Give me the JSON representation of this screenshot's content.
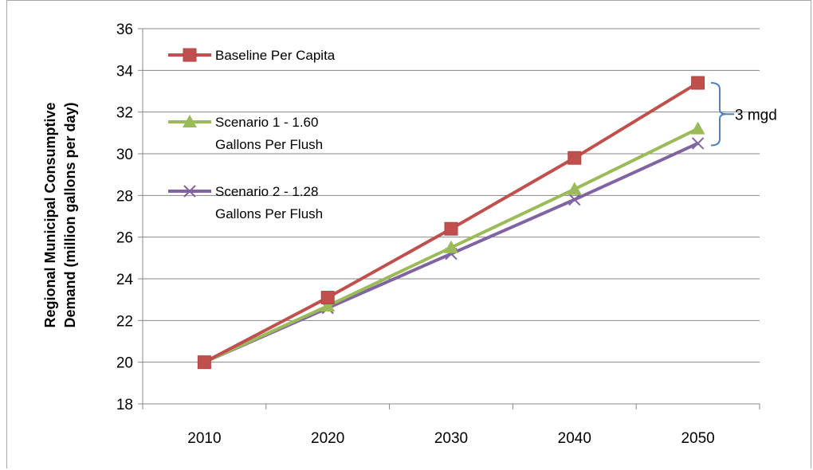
{
  "chart_data": {
    "type": "line",
    "title": "",
    "xlabel": "",
    "ylabel": "Regional Municipal Consumptive Demand (million gallons per day)",
    "ylabel_lines": [
      "Regional Municipal Consumptive",
      "Demand (million gallons per day)"
    ],
    "ylim": [
      18,
      36
    ],
    "ytick_step": 2,
    "categories": [
      "2010",
      "2020",
      "2030",
      "2040",
      "2050"
    ],
    "grid": true,
    "legend_position": "top-left-inside",
    "series": [
      {
        "name": "Baseline Per Capita",
        "name_lines": [
          "Baseline Per Capita"
        ],
        "values": [
          20.0,
          23.1,
          26.4,
          29.8,
          33.4
        ],
        "color": "#c0504d",
        "marker": "square"
      },
      {
        "name": "Scenario 1 - 1.60 Gallons Per Flush",
        "name_lines": [
          "Scenario 1 - 1.60",
          "Gallons Per Flush"
        ],
        "values": [
          20.0,
          22.7,
          25.5,
          28.3,
          31.2
        ],
        "color": "#9bbb59",
        "marker": "triangle"
      },
      {
        "name": "Scenario 2 - 1.28 Gallons Per Flush",
        "name_lines": [
          "Scenario 2 - 1.28",
          "Gallons Per Flush"
        ],
        "values": [
          20.0,
          22.6,
          25.2,
          27.8,
          30.5
        ],
        "color": "#8064a2",
        "marker": "x"
      }
    ],
    "annotations": [
      {
        "text": "3 mgd",
        "brace_from": 33.4,
        "brace_to": 30.4,
        "color": "#4f81bd"
      }
    ]
  }
}
